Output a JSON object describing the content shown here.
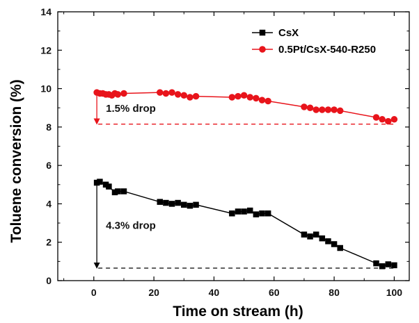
{
  "chart_data": {
    "type": "line",
    "xlabel": "Time on stream (h)",
    "ylabel": "Toluene conversion (%)",
    "xlim": [
      -12,
      105
    ],
    "ylim": [
      0,
      14
    ],
    "xticks": [
      0,
      20,
      40,
      60,
      80,
      100
    ],
    "yticks": [
      0,
      2,
      4,
      6,
      8,
      10,
      12,
      14
    ],
    "grid": false,
    "legend_position": "top-right",
    "series": [
      {
        "name": "CsX",
        "marker": "square",
        "color": "#000000",
        "x": [
          1,
          2,
          4,
          5,
          7,
          8,
          10,
          22,
          24,
          26,
          28,
          30,
          32,
          34,
          46,
          48,
          50,
          52,
          54,
          56,
          58,
          70,
          72,
          74,
          76,
          78,
          80,
          82,
          94,
          96,
          98,
          100
        ],
        "y": [
          5.1,
          5.15,
          5.0,
          4.9,
          4.6,
          4.65,
          4.65,
          4.1,
          4.05,
          4.0,
          4.05,
          3.95,
          3.9,
          3.95,
          3.5,
          3.6,
          3.6,
          3.65,
          3.45,
          3.5,
          3.5,
          2.4,
          2.3,
          2.4,
          2.2,
          2.05,
          1.9,
          1.7,
          0.9,
          0.75,
          0.85,
          0.8
        ]
      },
      {
        "name": "0.5Pt/CsX-540-R250",
        "marker": "circle",
        "color": "#e8141b",
        "x": [
          1,
          2,
          3,
          4,
          5,
          6,
          7,
          8,
          10,
          22,
          24,
          26,
          28,
          30,
          32,
          34,
          46,
          48,
          50,
          52,
          54,
          56,
          58,
          70,
          72,
          74,
          76,
          78,
          80,
          82,
          94,
          96,
          98,
          100
        ],
        "y": [
          9.8,
          9.75,
          9.75,
          9.7,
          9.7,
          9.65,
          9.75,
          9.7,
          9.75,
          9.8,
          9.75,
          9.8,
          9.7,
          9.65,
          9.55,
          9.6,
          9.55,
          9.6,
          9.65,
          9.55,
          9.5,
          9.4,
          9.35,
          9.05,
          9.0,
          8.9,
          8.9,
          8.9,
          8.9,
          8.85,
          8.5,
          8.4,
          8.3,
          8.4
        ]
      }
    ],
    "annotations": [
      {
        "text": "1.5% drop",
        "color": "#e8141b",
        "x_start": 1,
        "y_from": 9.8,
        "y_to": 8.15,
        "line_to_x": 100
      },
      {
        "text": "4.3% drop",
        "color": "#000000",
        "x_start": 1,
        "y_from": 5.1,
        "y_to": 0.65,
        "line_to_x": 100
      }
    ]
  }
}
